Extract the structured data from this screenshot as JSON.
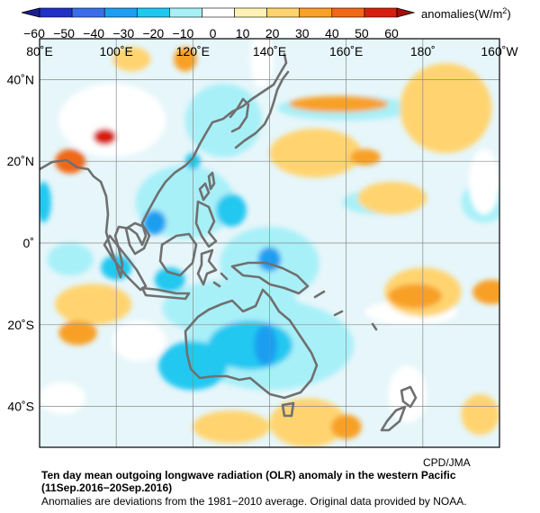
{
  "colorbar": {
    "ticks": [
      -60,
      -50,
      -40,
      -30,
      -20,
      -10,
      0,
      10,
      20,
      30,
      40,
      50,
      60
    ],
    "tick_labels": [
      "−60",
      "−50",
      "−40",
      "−30",
      "−20",
      "−10",
      "0",
      "10",
      "20",
      "30",
      "40",
      "50",
      "60"
    ],
    "colors": [
      "#2030c8",
      "#3a6ee8",
      "#1e9ef0",
      "#20c8f0",
      "#a8f0f8",
      "#ffffff",
      "#fff2b4",
      "#ffd470",
      "#f8a028",
      "#f06818",
      "#d81e10"
    ],
    "units_label": "anomalies(W/m",
    "units_superscript": "2",
    "units_close": ")"
  },
  "map": {
    "lon_labels": [
      "80˚E",
      "100˚E",
      "120˚E",
      "140˚E",
      "160˚E",
      "180˚",
      "160˚W"
    ],
    "lat_labels": [
      "40˚N",
      "20˚N",
      "0˚",
      "20˚S",
      "40˚S"
    ],
    "lon_range": [
      80,
      200
    ],
    "lat_range": [
      -50,
      50
    ],
    "gridlines": true,
    "coastline_color": "#707070",
    "blobs": [
      {
        "lon": 99,
        "lat": 30,
        "rx": 14,
        "ry": 9,
        "value": -10
      },
      {
        "lon": 128,
        "lat": 30,
        "rx": 10,
        "ry": 9,
        "value": -20
      },
      {
        "lon": 160,
        "lat": 33,
        "rx": 18,
        "ry": 3,
        "value": -20
      },
      {
        "lon": 138,
        "lat": 45,
        "rx": 3,
        "ry": 7,
        "value": -10
      },
      {
        "lon": 118,
        "lat": 10,
        "rx": 13,
        "ry": 9,
        "value": -20
      },
      {
        "lon": 120,
        "lat": 20,
        "rx": 2,
        "ry": 2,
        "value": -30
      },
      {
        "lon": 110,
        "lat": 5,
        "rx": 3,
        "ry": 3,
        "value": -40
      },
      {
        "lon": 130,
        "lat": 8,
        "rx": 4,
        "ry": 4,
        "value": -30
      },
      {
        "lon": 168,
        "lat": 10,
        "rx": 9,
        "ry": 3,
        "value": -20
      },
      {
        "lon": 196,
        "lat": 10,
        "rx": 6,
        "ry": 5,
        "value": -20
      },
      {
        "lon": 81,
        "lat": 10,
        "rx": 2,
        "ry": 5,
        "value": -30
      },
      {
        "lon": 88,
        "lat": -4,
        "rx": 6,
        "ry": 4,
        "value": -20
      },
      {
        "lon": 100,
        "lat": -6,
        "rx": 4,
        "ry": 3,
        "value": -30
      },
      {
        "lon": 114,
        "lat": -9,
        "rx": 4,
        "ry": 3,
        "value": -30
      },
      {
        "lon": 140,
        "lat": -5,
        "rx": 13,
        "ry": 9,
        "value": -20
      },
      {
        "lon": 140,
        "lat": -4,
        "rx": 3,
        "ry": 3,
        "value": -40
      },
      {
        "lon": 130,
        "lat": -16,
        "rx": 18,
        "ry": 7,
        "value": -20
      },
      {
        "lon": 140,
        "lat": -25,
        "rx": 22,
        "ry": 11,
        "value": -20
      },
      {
        "lon": 135,
        "lat": -25,
        "rx": 11,
        "ry": 6,
        "value": -30
      },
      {
        "lon": 139,
        "lat": -25,
        "rx": 3,
        "ry": 5,
        "value": -40
      },
      {
        "lon": 120,
        "lat": -30,
        "rx": 9,
        "ry": 6,
        "value": -30
      },
      {
        "lon": 106,
        "lat": -24,
        "rx": 7,
        "ry": 5,
        "value": -10
      },
      {
        "lon": 177,
        "lat": -17,
        "rx": 12,
        "ry": 3,
        "value": -10
      },
      {
        "lon": 86,
        "lat": -38,
        "rx": 6,
        "ry": 4,
        "value": -10
      },
      {
        "lon": 196,
        "lat": 15,
        "rx": 4,
        "ry": 8,
        "value": -10
      },
      {
        "lon": 152,
        "lat": 22,
        "rx": 12,
        "ry": 6,
        "value": 10
      },
      {
        "lon": 158,
        "lat": 34,
        "rx": 13,
        "ry": 2,
        "value": 20
      },
      {
        "lon": 186,
        "lat": 33,
        "rx": 12,
        "ry": 11,
        "value": 10
      },
      {
        "lon": 88,
        "lat": 20,
        "rx": 4,
        "ry": 3,
        "value": 30
      },
      {
        "lon": 97,
        "lat": 26,
        "rx": 3,
        "ry": 2,
        "value": 40
      },
      {
        "lon": 165,
        "lat": 21,
        "rx": 4,
        "ry": 2,
        "value": 20
      },
      {
        "lon": 172,
        "lat": 11,
        "rx": 9,
        "ry": 4,
        "value": 10
      },
      {
        "lon": 180,
        "lat": -12,
        "rx": 10,
        "ry": 6,
        "value": 10
      },
      {
        "lon": 178,
        "lat": -13,
        "rx": 7,
        "ry": 3,
        "value": 20
      },
      {
        "lon": 198,
        "lat": -12,
        "rx": 5,
        "ry": 3,
        "value": 20
      },
      {
        "lon": 94,
        "lat": -15,
        "rx": 10,
        "ry": 5,
        "value": 10
      },
      {
        "lon": 90,
        "lat": -22,
        "rx": 5,
        "ry": 3,
        "value": 20
      },
      {
        "lon": 130,
        "lat": -45,
        "rx": 10,
        "ry": 4,
        "value": 10
      },
      {
        "lon": 150,
        "lat": -44,
        "rx": 10,
        "ry": 6,
        "value": 10
      },
      {
        "lon": 160,
        "lat": -45,
        "rx": 4,
        "ry": 3,
        "value": 20
      },
      {
        "lon": 176,
        "lat": -37,
        "rx": 5,
        "ry": 7,
        "value": -10
      },
      {
        "lon": 195,
        "lat": -42,
        "rx": 5,
        "ry": 5,
        "value": 10
      },
      {
        "lon": 104,
        "lat": 45,
        "rx": 5,
        "ry": 3,
        "value": 10
      },
      {
        "lon": 118,
        "lat": 45,
        "rx": 3,
        "ry": 3,
        "value": 20
      }
    ]
  },
  "credit": "CPD/JMA",
  "caption": {
    "title": "Ten day mean outgoing longwave radiation (OLR) anomaly in the western Pacific",
    "period": "(11Sep.2016−20Sep.2016)",
    "note": "Anomalies are deviations from the 1981−2010 average. Original data provided by NOAA."
  }
}
